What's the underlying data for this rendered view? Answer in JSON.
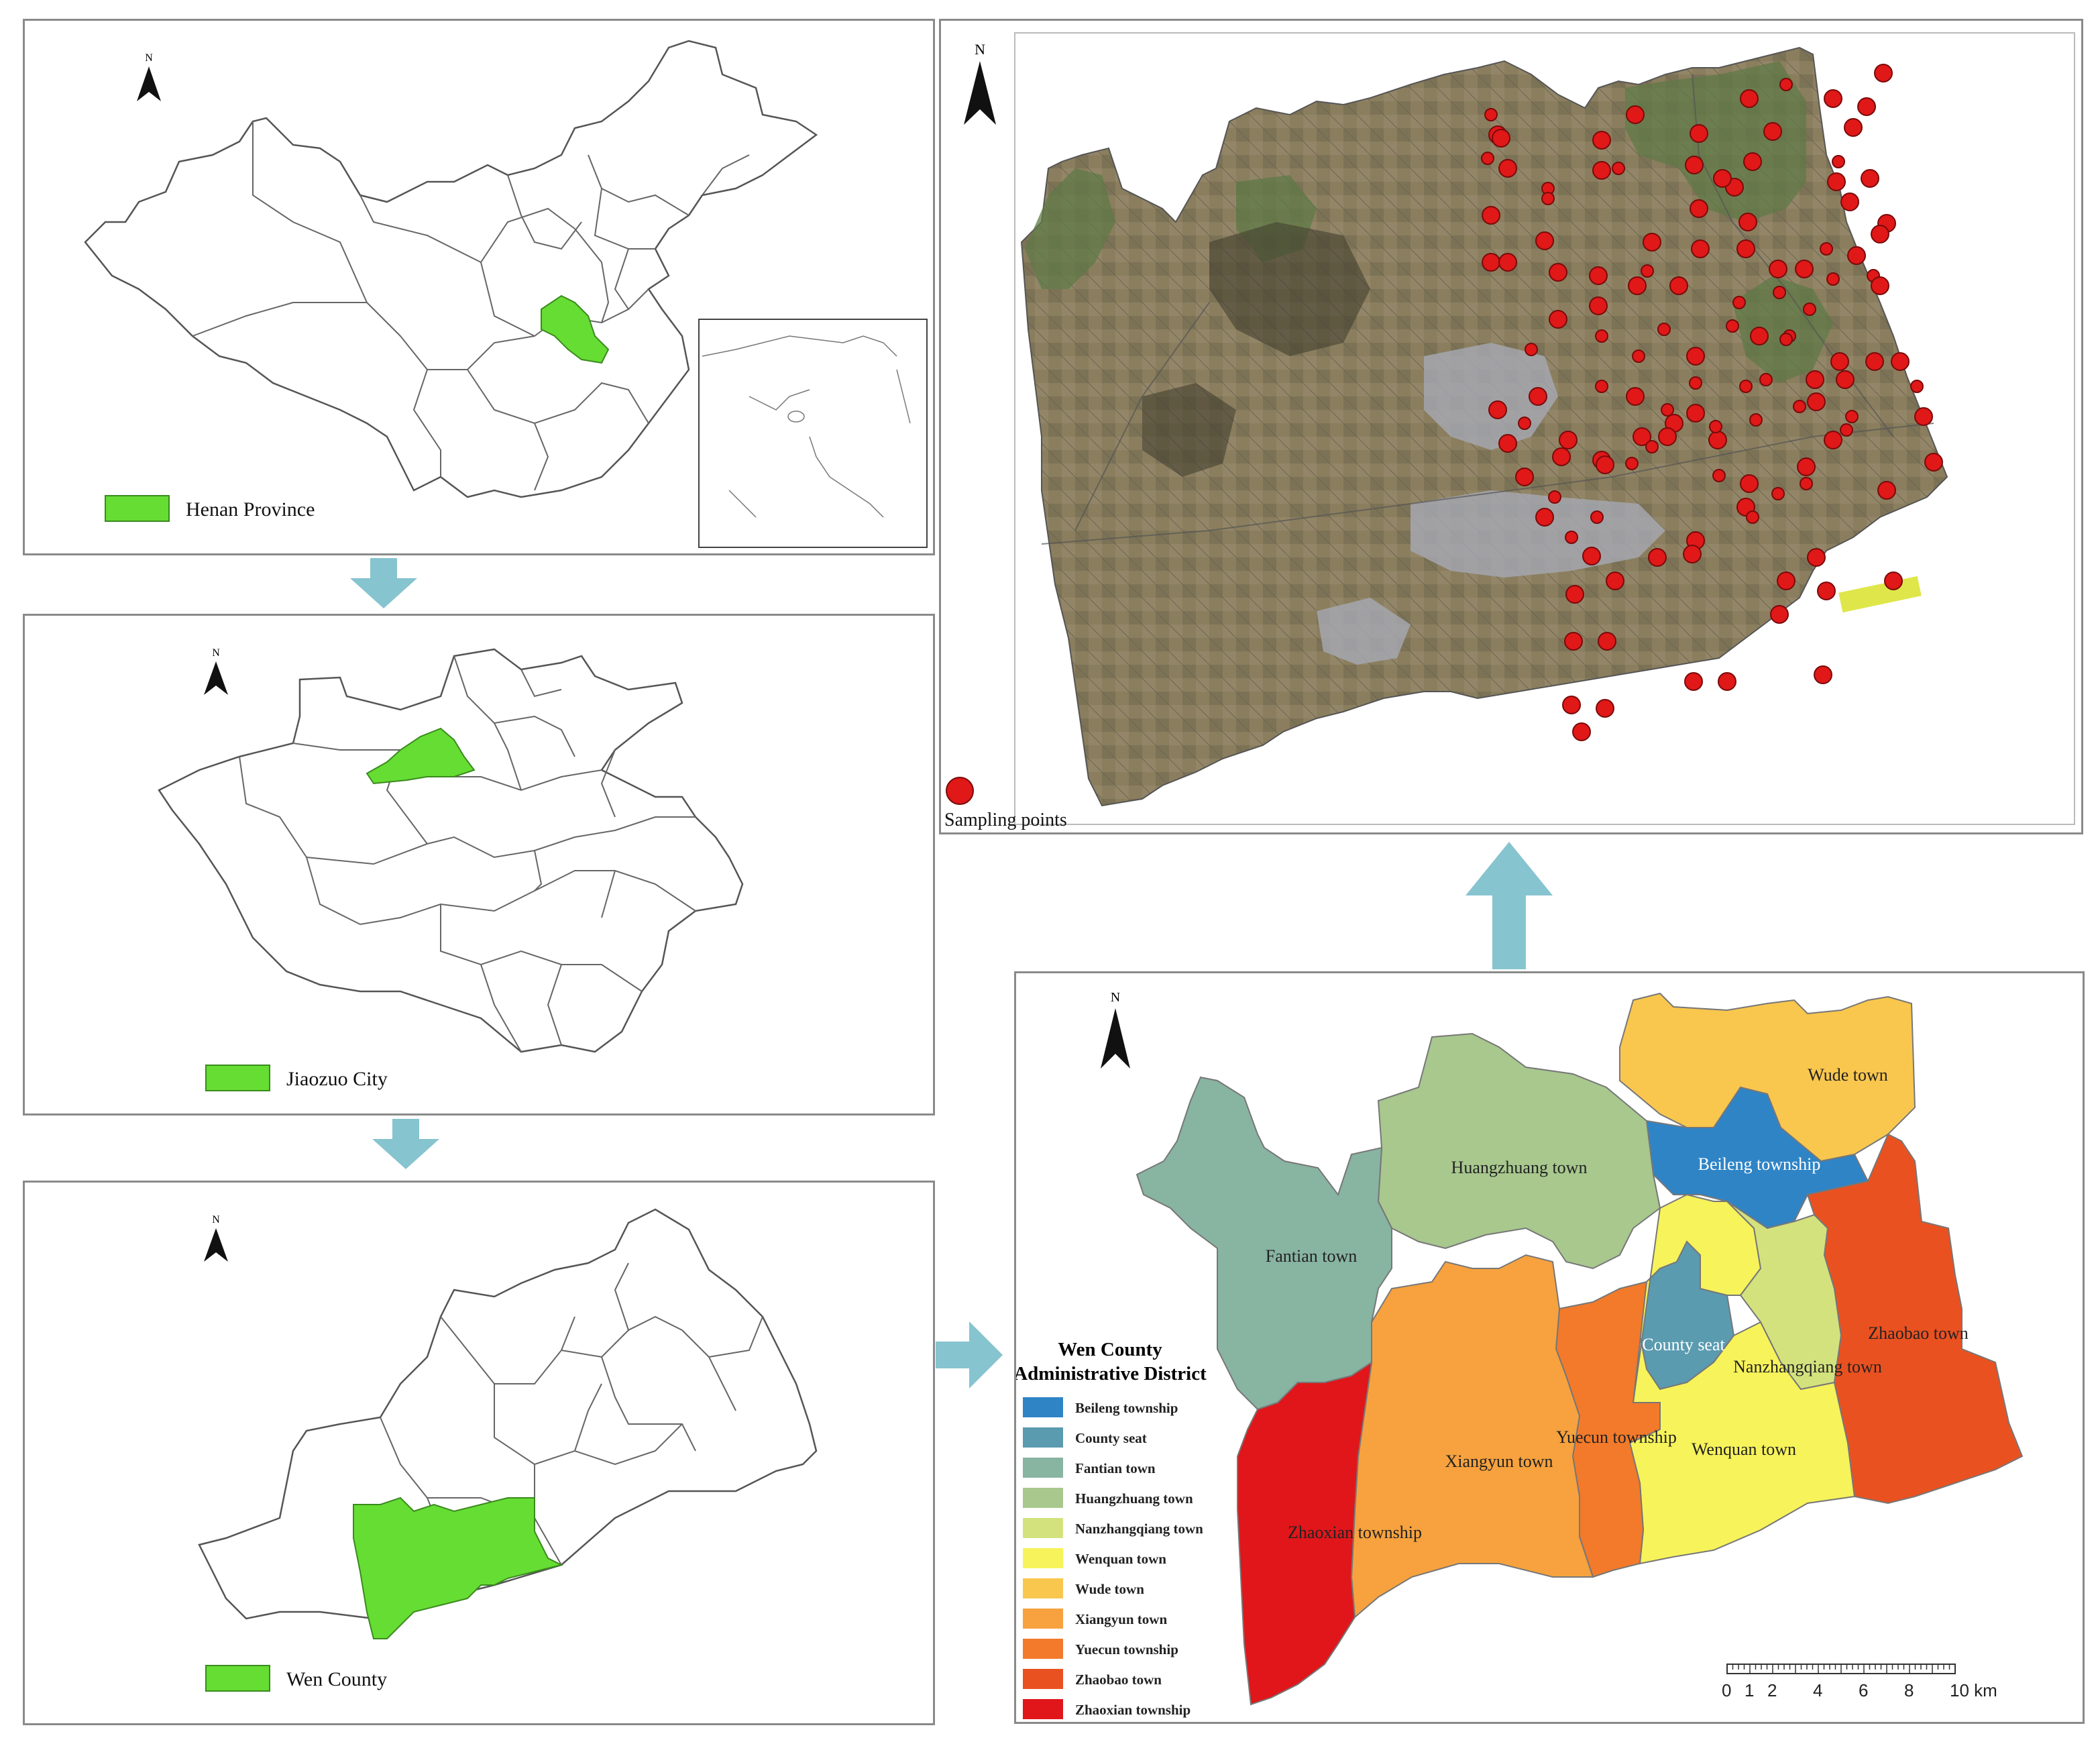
{
  "panels": {
    "china": {
      "legend_label": "Henan Province",
      "north_letter": "N",
      "highlight_color": "#66dd33"
    },
    "henan": {
      "legend_label": "Jiaozuo City",
      "north_letter": "N",
      "highlight_color": "#66dd33"
    },
    "jiaozuo": {
      "legend_label": "Wen County",
      "north_letter": "N",
      "highlight_color": "#66dd33"
    },
    "satellite": {
      "legend_label": "Sampling points",
      "north_letter": "N",
      "point_color": "#e01818"
    },
    "district": {
      "north_letter": "N",
      "legend_title_line1": "Wen County",
      "legend_title_line2": "Administrative District",
      "legend_items": [
        {
          "label": "Beileng township",
          "color": "#2f84c6"
        },
        {
          "label": "County seat",
          "color": "#5a9bb0"
        },
        {
          "label": "Fantian town",
          "color": "#88b4a2"
        },
        {
          "label": "Huangzhuang town",
          "color": "#a8c88e"
        },
        {
          "label": "Nanzhangqiang town",
          "color": "#d4e27e"
        },
        {
          "label": "Wenquan town",
          "color": "#f7f35a"
        },
        {
          "label": "Wude town",
          "color": "#f9c74e"
        },
        {
          "label": "Xiangyun town",
          "color": "#f7a23e"
        },
        {
          "label": "Yuecun township",
          "color": "#f27a2a"
        },
        {
          "label": "Zhaobao town",
          "color": "#ea5120"
        },
        {
          "label": "Zhaoxian township",
          "color": "#e0161a"
        }
      ],
      "region_labels": {
        "wude": "Wude town",
        "beileng": "Beileng township",
        "huangzhuang": "Huangzhuang town",
        "fantian": "Fantian town",
        "county_seat": "County seat",
        "nanzhangqiang": "Nanzhangqiang town",
        "zhaobao": "Zhaobao town",
        "yuecun": "Yuecun township",
        "wenquan": "Wenquan town",
        "xiangyun": "Xiangyun town",
        "zhaoxian": "Zhaoxian township"
      },
      "scale_ticks": [
        "0",
        "1",
        "2",
        "4",
        "6",
        "8",
        "10 km"
      ]
    }
  },
  "arrow_color": "#86c4cf"
}
